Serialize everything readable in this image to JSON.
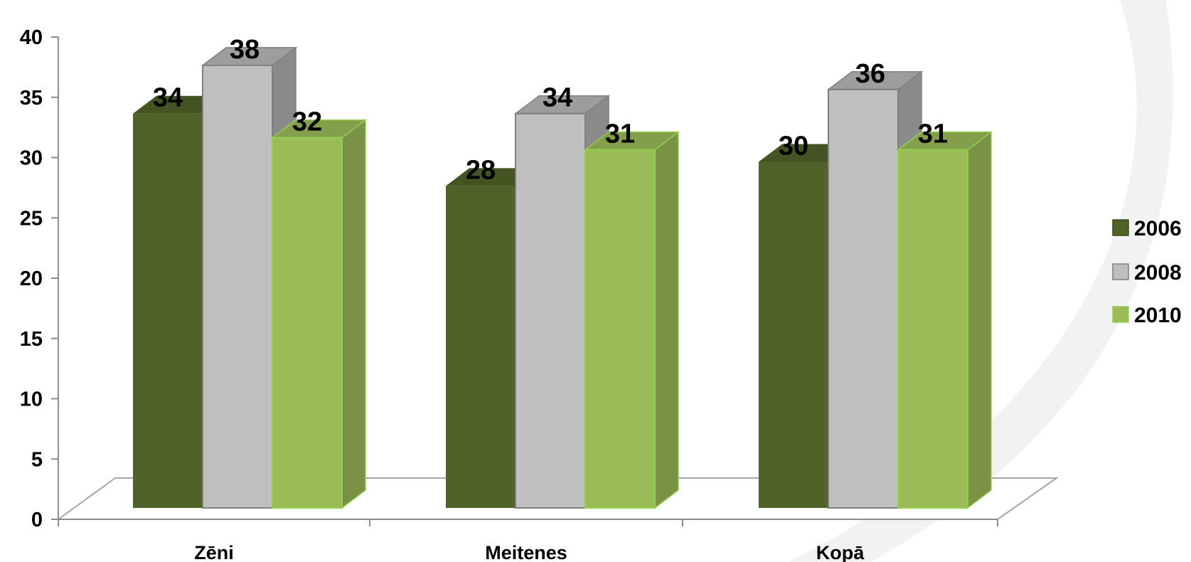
{
  "chart_data": {
    "type": "bar",
    "categories": [
      "Zēni",
      "Meitenes",
      "Kopā"
    ],
    "series": [
      {
        "name": "2006",
        "values": [
          34,
          28,
          30
        ],
        "color": "#4F6228"
      },
      {
        "name": "2008",
        "values": [
          38,
          34,
          36
        ],
        "color": "#BFBFBF"
      },
      {
        "name": "2010",
        "values": [
          32,
          31,
          31
        ],
        "color": "#9BBB59"
      }
    ],
    "ylim": [
      0,
      40
    ],
    "yticks": [
      "0",
      "5",
      "10",
      "15",
      "20",
      "25",
      "30",
      "35",
      "40"
    ],
    "ytick_values": [
      0,
      5,
      10,
      15,
      20,
      25,
      30,
      35,
      40
    ],
    "data_labels": true,
    "legend_position": "right",
    "grid": false,
    "style": "3d-column",
    "title": "",
    "xlabel": "",
    "ylabel": ""
  }
}
